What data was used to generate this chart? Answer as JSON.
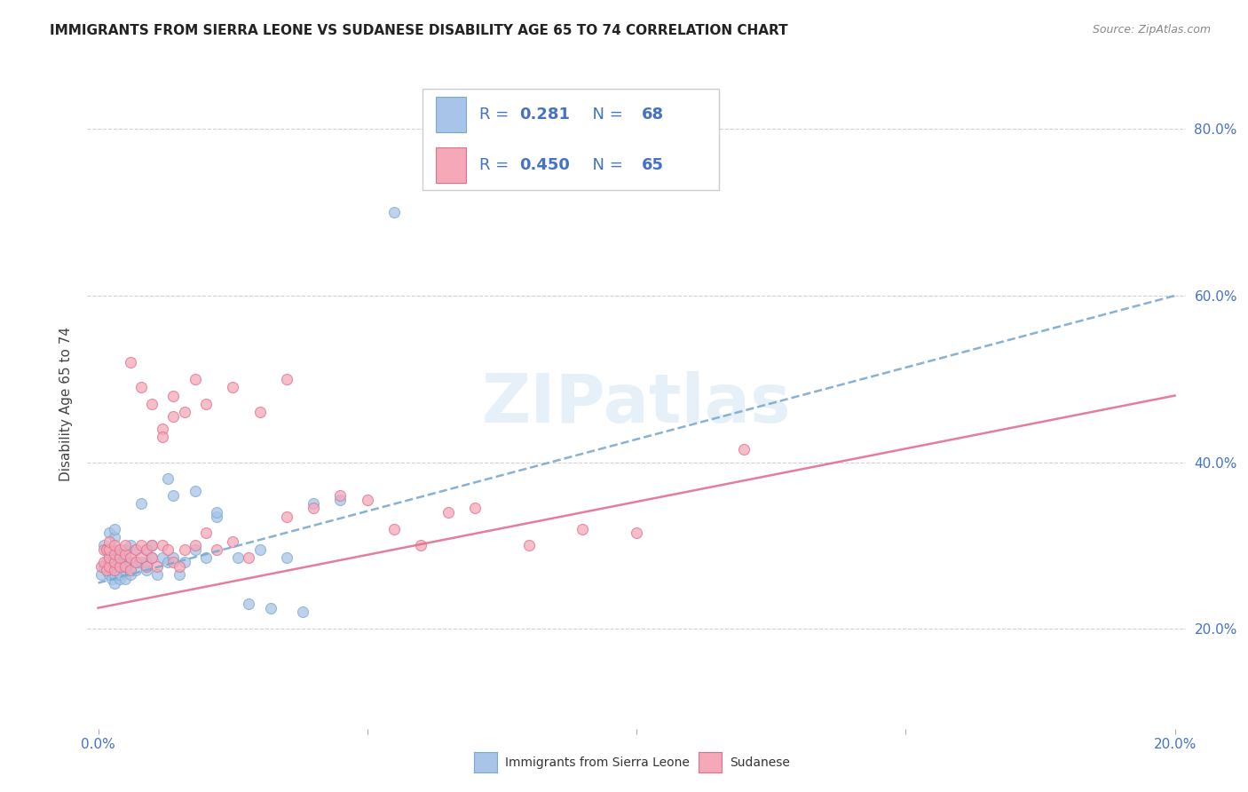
{
  "title": "IMMIGRANTS FROM SIERRA LEONE VS SUDANESE DISABILITY AGE 65 TO 74 CORRELATION CHART",
  "source": "Source: ZipAtlas.com",
  "ylabel": "Disability Age 65 to 74",
  "xlim": [
    -0.002,
    0.202
  ],
  "ylim": [
    0.08,
    0.86
  ],
  "yticks": [
    0.2,
    0.4,
    0.6,
    0.8
  ],
  "ytick_labels": [
    "20.0%",
    "40.0%",
    "60.0%",
    "80.0%"
  ],
  "xtick_positions": [
    0.0,
    0.05,
    0.1,
    0.15,
    0.2
  ],
  "xtick_labels": [
    "0.0%",
    "",
    "",
    "",
    "20.0%"
  ],
  "sierra_leone_color": "#a8c4e8",
  "sierra_leone_edge": "#7aaad0",
  "sudanese_color": "#f4a8b8",
  "sudanese_edge": "#e07090",
  "sierra_leone_line_color": "#7aaad0",
  "sudanese_line_color": "#e07090",
  "R_sierra": "0.281",
  "N_sierra": "68",
  "R_sudanese": "0.450",
  "N_sudanese": "65",
  "watermark": "ZIPatlas",
  "background_color": "#ffffff",
  "grid_color": "#cccccc",
  "legend_text_color": "#4472c4",
  "tick_color": "#4472c4",
  "sierra_leone_x": [
    0.0005,
    0.001,
    0.001,
    0.0015,
    0.0015,
    0.0015,
    0.002,
    0.002,
    0.002,
    0.002,
    0.002,
    0.002,
    0.0025,
    0.0025,
    0.003,
    0.003,
    0.003,
    0.003,
    0.003,
    0.003,
    0.003,
    0.003,
    0.004,
    0.004,
    0.004,
    0.004,
    0.004,
    0.005,
    0.005,
    0.005,
    0.005,
    0.005,
    0.005,
    0.006,
    0.006,
    0.006,
    0.007,
    0.007,
    0.007,
    0.008,
    0.008,
    0.009,
    0.009,
    0.009,
    0.01,
    0.01,
    0.011,
    0.012,
    0.013,
    0.014,
    0.015,
    0.016,
    0.018,
    0.02,
    0.022,
    0.026,
    0.03,
    0.035,
    0.04,
    0.045,
    0.013,
    0.014,
    0.018,
    0.022,
    0.028,
    0.032,
    0.038,
    0.055
  ],
  "sierra_leone_y": [
    0.265,
    0.275,
    0.3,
    0.27,
    0.28,
    0.295,
    0.265,
    0.275,
    0.285,
    0.295,
    0.315,
    0.28,
    0.26,
    0.27,
    0.255,
    0.265,
    0.275,
    0.28,
    0.29,
    0.295,
    0.31,
    0.32,
    0.26,
    0.265,
    0.275,
    0.285,
    0.29,
    0.26,
    0.27,
    0.275,
    0.28,
    0.285,
    0.295,
    0.265,
    0.28,
    0.3,
    0.27,
    0.28,
    0.295,
    0.28,
    0.35,
    0.27,
    0.28,
    0.295,
    0.285,
    0.3,
    0.265,
    0.285,
    0.28,
    0.285,
    0.265,
    0.28,
    0.295,
    0.285,
    0.335,
    0.285,
    0.295,
    0.285,
    0.35,
    0.355,
    0.38,
    0.36,
    0.365,
    0.34,
    0.23,
    0.225,
    0.22,
    0.7
  ],
  "sudanese_x": [
    0.0005,
    0.001,
    0.001,
    0.0015,
    0.0015,
    0.002,
    0.002,
    0.002,
    0.002,
    0.003,
    0.003,
    0.003,
    0.003,
    0.004,
    0.004,
    0.004,
    0.005,
    0.005,
    0.005,
    0.006,
    0.006,
    0.007,
    0.007,
    0.008,
    0.008,
    0.009,
    0.009,
    0.01,
    0.01,
    0.011,
    0.012,
    0.013,
    0.014,
    0.015,
    0.016,
    0.018,
    0.02,
    0.022,
    0.025,
    0.028,
    0.012,
    0.014,
    0.016,
    0.018,
    0.02,
    0.025,
    0.03,
    0.035,
    0.12,
    0.035,
    0.04,
    0.045,
    0.05,
    0.055,
    0.06,
    0.065,
    0.07,
    0.08,
    0.09,
    0.1,
    0.006,
    0.008,
    0.01,
    0.012,
    0.014
  ],
  "sudanese_y": [
    0.275,
    0.28,
    0.295,
    0.27,
    0.295,
    0.275,
    0.285,
    0.295,
    0.305,
    0.27,
    0.28,
    0.29,
    0.3,
    0.275,
    0.285,
    0.295,
    0.275,
    0.29,
    0.3,
    0.27,
    0.285,
    0.28,
    0.295,
    0.3,
    0.285,
    0.275,
    0.295,
    0.285,
    0.3,
    0.275,
    0.3,
    0.295,
    0.28,
    0.275,
    0.295,
    0.3,
    0.315,
    0.295,
    0.305,
    0.285,
    0.44,
    0.48,
    0.46,
    0.5,
    0.47,
    0.49,
    0.46,
    0.5,
    0.415,
    0.335,
    0.345,
    0.36,
    0.355,
    0.32,
    0.3,
    0.34,
    0.345,
    0.3,
    0.32,
    0.315,
    0.52,
    0.49,
    0.47,
    0.43,
    0.455
  ]
}
